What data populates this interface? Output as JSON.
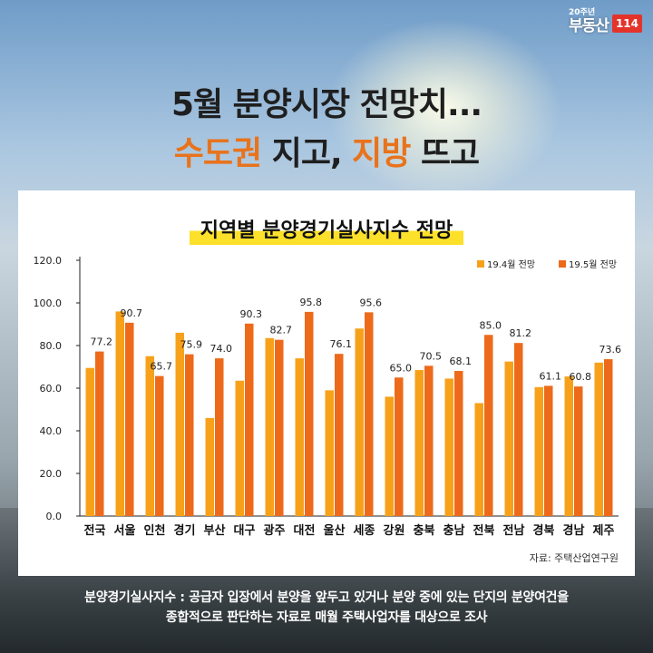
{
  "logo": {
    "superscript": "20주년",
    "brand": "부동산",
    "number": "114"
  },
  "headline": {
    "line1": "5월 분양시장 전망치...",
    "line2_part1": "수도권",
    "line2_part2": " 지고, ",
    "line2_part3": "지방",
    "line2_part4": " 뜨고"
  },
  "colors": {
    "series1": "#f7a11a",
    "series2": "#ed6a1b",
    "highlight": "#e8731c",
    "title_underline": "#fde02a"
  },
  "chart_data": {
    "type": "bar",
    "title": "지역별 분양경기실사지수 전망",
    "categories": [
      "전국",
      "서울",
      "인천",
      "경기",
      "부산",
      "대구",
      "광주",
      "대전",
      "울산",
      "세종",
      "강원",
      "충북",
      "충남",
      "전북",
      "전남",
      "경북",
      "경남",
      "제주"
    ],
    "series": [
      {
        "name": "19.4월 전망",
        "values": [
          69.5,
          96.0,
          75.0,
          86.0,
          46.0,
          63.5,
          83.5,
          74.0,
          59.0,
          88.0,
          56.0,
          68.5,
          64.5,
          53.0,
          72.5,
          60.5,
          65.5,
          72.0
        ]
      },
      {
        "name": "19.5월 전망",
        "values": [
          77.2,
          90.7,
          65.7,
          75.9,
          74.0,
          90.3,
          82.7,
          95.8,
          76.1,
          95.6,
          65.0,
          70.5,
          68.1,
          85.0,
          81.2,
          61.1,
          60.8,
          73.6
        ]
      }
    ],
    "data_labels": [
      "77.2",
      "90.7",
      "65.7",
      "75.9",
      "74.0",
      "90.3",
      "82.7",
      "95.8",
      "76.1",
      "95.6",
      "65.0",
      "70.5",
      "68.1",
      "85.0",
      "81.2",
      "61.1",
      "60.8",
      "73.6"
    ],
    "y_ticks": [
      "0.0",
      "20.0",
      "40.0",
      "60.0",
      "80.0",
      "100.0",
      "120.0"
    ],
    "ylim": [
      0,
      120
    ],
    "legend_position": "top-right",
    "grid": false
  },
  "source": "자료: 주택산업연구원",
  "footnote": {
    "line1": "분양경기실사지수 : 공급자 입장에서 분양을 앞두고 있거나 분양 중에 있는 단지의 분양여건을",
    "line2": "종합적으로 판단하는 자료로 매월 주택사업자를 대상으로 조사"
  }
}
